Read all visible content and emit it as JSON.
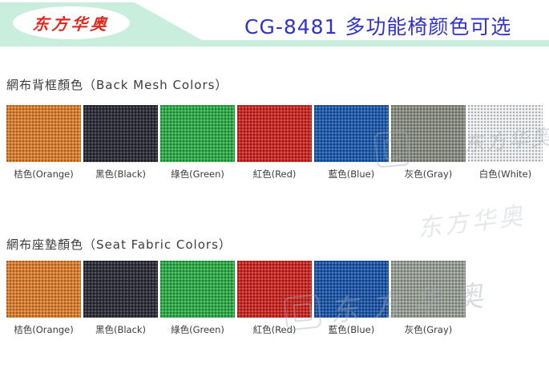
{
  "header": {
    "logo_text": "东方华奥",
    "title": "CG-8481 多功能椅颜色可选"
  },
  "sections": [
    {
      "heading": "網布背框顏色（Back Mesh Colors）",
      "swatches": [
        {
          "label": "桔色(Orange)",
          "color": "#dd8030"
        },
        {
          "label": "黑色(Black)",
          "color": "#2c2c38"
        },
        {
          "label": "綠色(Green)",
          "color": "#2fae48"
        },
        {
          "label": "紅色(Red)",
          "color": "#cc2823"
        },
        {
          "label": "藍色(Blue)",
          "color": "#1e5cae"
        },
        {
          "label": "灰色(Gray)",
          "color": "#8a9084"
        },
        {
          "label": "白色(White)",
          "color": "#eef1f3"
        }
      ]
    },
    {
      "heading": "網布座墊顏色（Seat Fabric Colors）",
      "swatches": [
        {
          "label": "桔色(Orange)",
          "color": "#dd8030"
        },
        {
          "label": "黑色(Black)",
          "color": "#2e2e39"
        },
        {
          "label": "綠色(Green)",
          "color": "#2fae48"
        },
        {
          "label": "紅色(Red)",
          "color": "#cc2823"
        },
        {
          "label": "藍色(Blue)",
          "color": "#1e56a8"
        },
        {
          "label": "灰色(Gray)",
          "color": "#9aa196"
        }
      ]
    }
  ],
  "watermark": {
    "text": "东方华奥"
  },
  "colors": {
    "header_band": "#c9eedd",
    "title_text": "#3232cd",
    "logo_text": "#e0281e",
    "body_text": "#3c3c3c"
  }
}
